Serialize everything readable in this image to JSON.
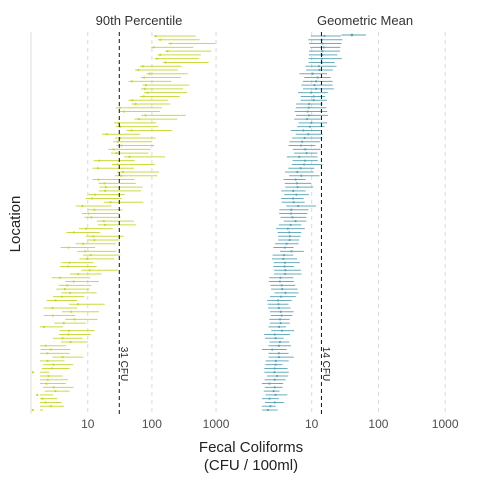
{
  "chart_data": {
    "type": "errorbar",
    "xlabel_line1": "Fecal Coliforms",
    "xlabel_line2": "(CFU / 100ml)",
    "ylabel": "Location",
    "x_scale": "log10",
    "xlim": [
      1.8,
      2200
    ],
    "x_ticks": [
      {
        "value": 10,
        "label": "10"
      },
      {
        "value": 100,
        "label": "100"
      },
      {
        "value": 1000,
        "label": "1000"
      }
    ],
    "location_count": 100,
    "grid": "vertical dashed",
    "facets": [
      {
        "title": "90th Percentile",
        "color": "#c5d62a",
        "reference": {
          "value": 31,
          "label": "31 CFU"
        },
        "center_start": 2.0,
        "center_end": 150,
        "lower_factor_range": [
          1.5,
          1.08
        ],
        "upper_factor_range": [
          1.6,
          4.5
        ]
      },
      {
        "title": "Geometric Mean",
        "color": "#5aa3b4",
        "reference": {
          "value": 14,
          "label": "14 CFU"
        },
        "center_start": 2.5,
        "center_end": 15,
        "lower_factor_range": [
          1.4,
          1.6
        ],
        "upper_factor_range": [
          1.4,
          1.8
        ],
        "outlier": {
          "center": 40,
          "low": 28,
          "high": 65
        }
      }
    ]
  }
}
